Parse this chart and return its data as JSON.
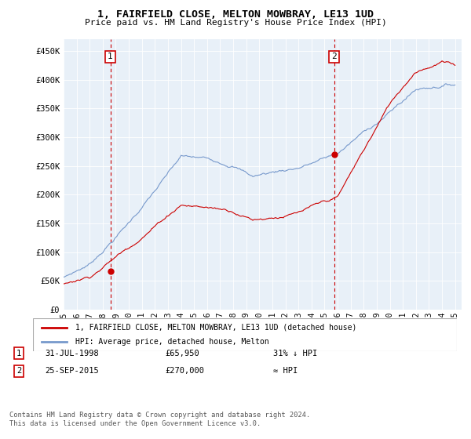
{
  "title": "1, FAIRFIELD CLOSE, MELTON MOWBRAY, LE13 1UD",
  "subtitle": "Price paid vs. HM Land Registry's House Price Index (HPI)",
  "ylabel_ticks": [
    "£0",
    "£50K",
    "£100K",
    "£150K",
    "£200K",
    "£250K",
    "£300K",
    "£350K",
    "£400K",
    "£450K"
  ],
  "ytick_values": [
    0,
    50000,
    100000,
    150000,
    200000,
    250000,
    300000,
    350000,
    400000,
    450000
  ],
  "ylim": [
    0,
    470000
  ],
  "xlim_start": 1995.0,
  "xlim_end": 2025.5,
  "background_color": "#e8f0f8",
  "plot_bg_color": "#e8f0f8",
  "hpi_line_color": "#7799cc",
  "price_line_color": "#cc0000",
  "marker1_date": 1998.58,
  "marker1_price": 65950,
  "marker2_date": 2015.73,
  "marker2_price": 270000,
  "legend_label1": "1, FAIRFIELD CLOSE, MELTON MOWBRAY, LE13 1UD (detached house)",
  "legend_label2": "HPI: Average price, detached house, Melton",
  "note1_date": "31-JUL-1998",
  "note1_price": "£65,950",
  "note1_rel": "31% ↓ HPI",
  "note2_date": "25-SEP-2015",
  "note2_price": "£270,000",
  "note2_rel": "≈ HPI",
  "footer": "Contains HM Land Registry data © Crown copyright and database right 2024.\nThis data is licensed under the Open Government Licence v3.0.",
  "xtick_years": [
    1995,
    1996,
    1997,
    1998,
    1999,
    2000,
    2001,
    2002,
    2003,
    2004,
    2005,
    2006,
    2007,
    2008,
    2009,
    2010,
    2011,
    2012,
    2013,
    2014,
    2015,
    2016,
    2017,
    2018,
    2019,
    2020,
    2021,
    2022,
    2023,
    2024,
    2025
  ]
}
